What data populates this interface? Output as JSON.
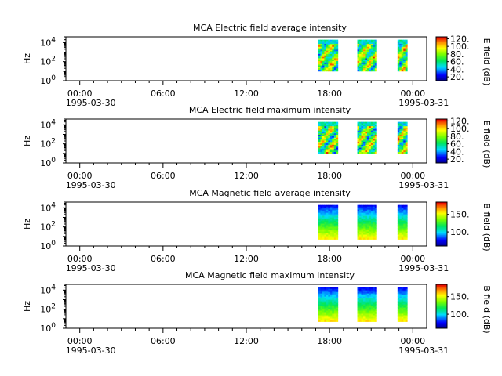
{
  "chart_data": [
    {
      "type": "heatmap",
      "title": "MCA  Electric field average intensity",
      "ylabel": "Hz",
      "colorbar_label": "E field (dB)",
      "colorbar_ticks": [
        "20.",
        "40.",
        "60.",
        "80.",
        "100.",
        "120."
      ],
      "colorbar_range": [
        10,
        125
      ],
      "ylim": [
        1,
        40000
      ],
      "y_ticks": [
        {
          "base": "10",
          "exp": "0"
        },
        {
          "base": "10",
          "exp": "2"
        },
        {
          "base": "10",
          "exp": "4"
        }
      ],
      "x_ticks": [
        {
          "time": "00:00",
          "date": "1995-03-30"
        },
        {
          "time": "06:00",
          "date": ""
        },
        {
          "time": "12:00",
          "date": ""
        },
        {
          "time": "18:00",
          "date": ""
        },
        {
          "time": "00:00",
          "date": "1995-03-31"
        }
      ],
      "xlim_hours": [
        -1,
        25
      ],
      "data_intervals_hours": [
        [
          17.2,
          18.6
        ],
        [
          20.0,
          21.4
        ],
        [
          22.9,
          23.6
        ]
      ],
      "freq_range_hz": [
        10,
        20000
      ],
      "field": "electric"
    },
    {
      "type": "heatmap",
      "title": "MCA  Electric field maximum intensity",
      "ylabel": "Hz",
      "colorbar_label": "E field (dB)",
      "colorbar_ticks": [
        "20.",
        "40.",
        "60.",
        "80.",
        "100.",
        "120."
      ],
      "colorbar_range": [
        10,
        125
      ],
      "ylim": [
        1,
        40000
      ],
      "y_ticks": [
        {
          "base": "10",
          "exp": "0"
        },
        {
          "base": "10",
          "exp": "2"
        },
        {
          "base": "10",
          "exp": "4"
        }
      ],
      "x_ticks": [
        {
          "time": "00:00",
          "date": "1995-03-30"
        },
        {
          "time": "06:00",
          "date": ""
        },
        {
          "time": "12:00",
          "date": ""
        },
        {
          "time": "18:00",
          "date": ""
        },
        {
          "time": "00:00",
          "date": "1995-03-31"
        }
      ],
      "xlim_hours": [
        -1,
        25
      ],
      "data_intervals_hours": [
        [
          17.2,
          18.6
        ],
        [
          20.0,
          21.4
        ],
        [
          22.9,
          23.6
        ]
      ],
      "freq_range_hz": [
        10,
        20000
      ],
      "field": "electric"
    },
    {
      "type": "heatmap",
      "title": "MCA  Magnetic field average intensity",
      "ylabel": "Hz",
      "colorbar_label": "B field (dB)",
      "colorbar_ticks": [
        "100.",
        "150."
      ],
      "colorbar_range": [
        60,
        185
      ],
      "ylim": [
        1,
        40000
      ],
      "y_ticks": [
        {
          "base": "10",
          "exp": "0"
        },
        {
          "base": "10",
          "exp": "2"
        },
        {
          "base": "10",
          "exp": "4"
        }
      ],
      "x_ticks": [
        {
          "time": "00:00",
          "date": "1995-03-30"
        },
        {
          "time": "06:00",
          "date": ""
        },
        {
          "time": "12:00",
          "date": ""
        },
        {
          "time": "18:00",
          "date": ""
        },
        {
          "time": "00:00",
          "date": "1995-03-31"
        }
      ],
      "xlim_hours": [
        -1,
        25
      ],
      "data_intervals_hours": [
        [
          17.2,
          18.6
        ],
        [
          20.0,
          21.4
        ],
        [
          22.9,
          23.6
        ]
      ],
      "freq_range_hz": [
        5,
        20000
      ],
      "field": "magnetic"
    },
    {
      "type": "heatmap",
      "title": "MCA  Magnetic field maximum intensity",
      "ylabel": "Hz",
      "colorbar_label": "B field (dB)",
      "colorbar_ticks": [
        "100.",
        "150."
      ],
      "colorbar_range": [
        60,
        185
      ],
      "ylim": [
        1,
        40000
      ],
      "y_ticks": [
        {
          "base": "10",
          "exp": "0"
        },
        {
          "base": "10",
          "exp": "2"
        },
        {
          "base": "10",
          "exp": "4"
        }
      ],
      "x_ticks": [
        {
          "time": "00:00",
          "date": "1995-03-30"
        },
        {
          "time": "06:00",
          "date": ""
        },
        {
          "time": "12:00",
          "date": ""
        },
        {
          "time": "18:00",
          "date": ""
        },
        {
          "time": "00:00",
          "date": "1995-03-31"
        }
      ],
      "xlim_hours": [
        -1,
        25
      ],
      "data_intervals_hours": [
        [
          17.2,
          18.6
        ],
        [
          20.0,
          21.4
        ],
        [
          22.9,
          23.6
        ]
      ],
      "freq_range_hz": [
        5,
        20000
      ],
      "field": "magnetic"
    }
  ]
}
